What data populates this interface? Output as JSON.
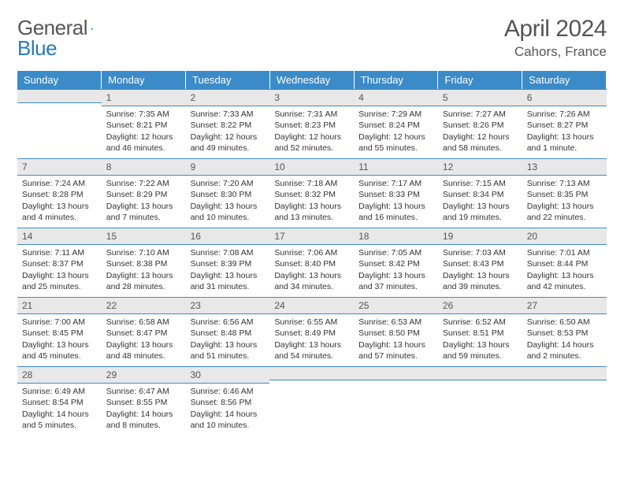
{
  "logo": {
    "general": "General",
    "blue": "Blue"
  },
  "title": "April 2024",
  "location": "Cahors, France",
  "colors": {
    "header_bg": "#3b8bc9",
    "header_text": "#ffffff",
    "daynum_bg": "#e8e8e8",
    "border": "#3b8bc9",
    "body_text": "#333333",
    "title_text": "#555555"
  },
  "weekdays": [
    "Sunday",
    "Monday",
    "Tuesday",
    "Wednesday",
    "Thursday",
    "Friday",
    "Saturday"
  ],
  "start_offset": 1,
  "days": [
    {
      "n": 1,
      "sr": "7:35 AM",
      "ss": "8:21 PM",
      "dl": "12 hours and 46 minutes."
    },
    {
      "n": 2,
      "sr": "7:33 AM",
      "ss": "8:22 PM",
      "dl": "12 hours and 49 minutes."
    },
    {
      "n": 3,
      "sr": "7:31 AM",
      "ss": "8:23 PM",
      "dl": "12 hours and 52 minutes."
    },
    {
      "n": 4,
      "sr": "7:29 AM",
      "ss": "8:24 PM",
      "dl": "12 hours and 55 minutes."
    },
    {
      "n": 5,
      "sr": "7:27 AM",
      "ss": "8:26 PM",
      "dl": "12 hours and 58 minutes."
    },
    {
      "n": 6,
      "sr": "7:26 AM",
      "ss": "8:27 PM",
      "dl": "13 hours and 1 minute."
    },
    {
      "n": 7,
      "sr": "7:24 AM",
      "ss": "8:28 PM",
      "dl": "13 hours and 4 minutes."
    },
    {
      "n": 8,
      "sr": "7:22 AM",
      "ss": "8:29 PM",
      "dl": "13 hours and 7 minutes."
    },
    {
      "n": 9,
      "sr": "7:20 AM",
      "ss": "8:30 PM",
      "dl": "13 hours and 10 minutes."
    },
    {
      "n": 10,
      "sr": "7:18 AM",
      "ss": "8:32 PM",
      "dl": "13 hours and 13 minutes."
    },
    {
      "n": 11,
      "sr": "7:17 AM",
      "ss": "8:33 PM",
      "dl": "13 hours and 16 minutes."
    },
    {
      "n": 12,
      "sr": "7:15 AM",
      "ss": "8:34 PM",
      "dl": "13 hours and 19 minutes."
    },
    {
      "n": 13,
      "sr": "7:13 AM",
      "ss": "8:35 PM",
      "dl": "13 hours and 22 minutes."
    },
    {
      "n": 14,
      "sr": "7:11 AM",
      "ss": "8:37 PM",
      "dl": "13 hours and 25 minutes."
    },
    {
      "n": 15,
      "sr": "7:10 AM",
      "ss": "8:38 PM",
      "dl": "13 hours and 28 minutes."
    },
    {
      "n": 16,
      "sr": "7:08 AM",
      "ss": "8:39 PM",
      "dl": "13 hours and 31 minutes."
    },
    {
      "n": 17,
      "sr": "7:06 AM",
      "ss": "8:40 PM",
      "dl": "13 hours and 34 minutes."
    },
    {
      "n": 18,
      "sr": "7:05 AM",
      "ss": "8:42 PM",
      "dl": "13 hours and 37 minutes."
    },
    {
      "n": 19,
      "sr": "7:03 AM",
      "ss": "8:43 PM",
      "dl": "13 hours and 39 minutes."
    },
    {
      "n": 20,
      "sr": "7:01 AM",
      "ss": "8:44 PM",
      "dl": "13 hours and 42 minutes."
    },
    {
      "n": 21,
      "sr": "7:00 AM",
      "ss": "8:45 PM",
      "dl": "13 hours and 45 minutes."
    },
    {
      "n": 22,
      "sr": "6:58 AM",
      "ss": "8:47 PM",
      "dl": "13 hours and 48 minutes."
    },
    {
      "n": 23,
      "sr": "6:56 AM",
      "ss": "8:48 PM",
      "dl": "13 hours and 51 minutes."
    },
    {
      "n": 24,
      "sr": "6:55 AM",
      "ss": "8:49 PM",
      "dl": "13 hours and 54 minutes."
    },
    {
      "n": 25,
      "sr": "6:53 AM",
      "ss": "8:50 PM",
      "dl": "13 hours and 57 minutes."
    },
    {
      "n": 26,
      "sr": "6:52 AM",
      "ss": "8:51 PM",
      "dl": "13 hours and 59 minutes."
    },
    {
      "n": 27,
      "sr": "6:50 AM",
      "ss": "8:53 PM",
      "dl": "14 hours and 2 minutes."
    },
    {
      "n": 28,
      "sr": "6:49 AM",
      "ss": "8:54 PM",
      "dl": "14 hours and 5 minutes."
    },
    {
      "n": 29,
      "sr": "6:47 AM",
      "ss": "8:55 PM",
      "dl": "14 hours and 8 minutes."
    },
    {
      "n": 30,
      "sr": "6:46 AM",
      "ss": "8:56 PM",
      "dl": "14 hours and 10 minutes."
    }
  ],
  "labels": {
    "sunrise": "Sunrise:",
    "sunset": "Sunset:",
    "daylight": "Daylight:"
  }
}
